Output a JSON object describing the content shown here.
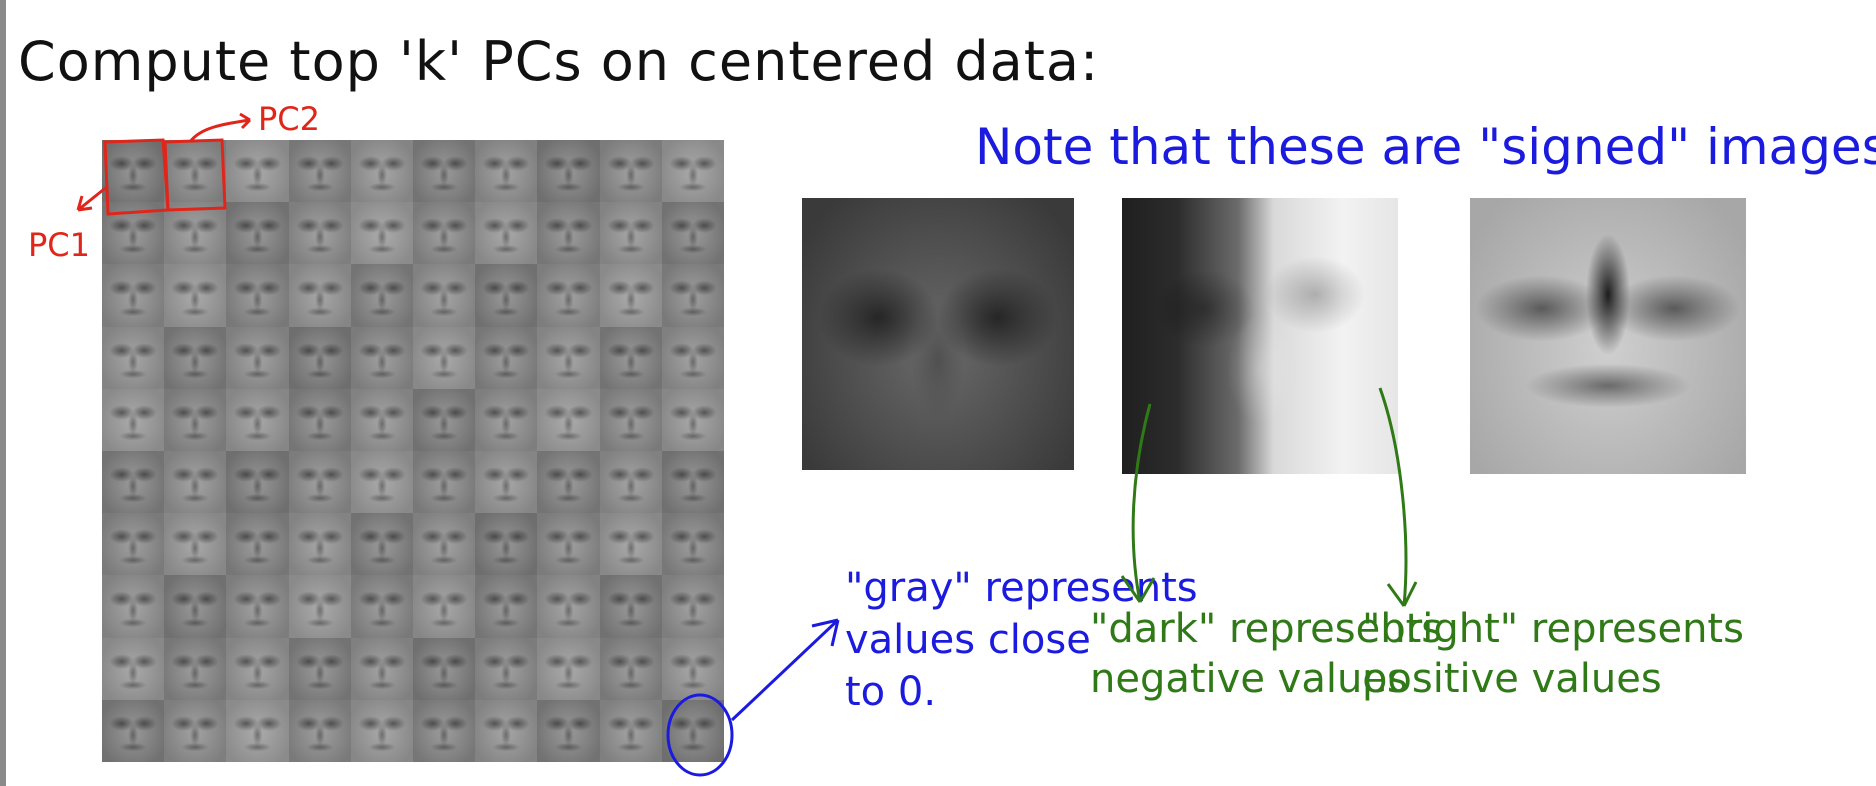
{
  "title": "Compute top 'k' PCs on centered data:",
  "note": "Note that these are \"signed\" images.",
  "labels": {
    "pc1": "PC1",
    "pc2": "PC2"
  },
  "annotations": {
    "gray": "\"gray\" represents\nvalues close\nto 0.",
    "dark": "\"dark\" represents\nnegative values",
    "bright": "\"bright\" represents\npositive values"
  },
  "grid": {
    "rows": 10,
    "cols": 10
  },
  "colors": {
    "title": "#111111",
    "pc_annotation": "#e0261a",
    "note": "#1b1be0",
    "green_annotation": "#2f7a16"
  },
  "icons": [
    "eigenface-grid",
    "eigenface-pc1-enlarged",
    "eigenface-pc2-enlarged",
    "eigenface-pc3-enlarged"
  ]
}
